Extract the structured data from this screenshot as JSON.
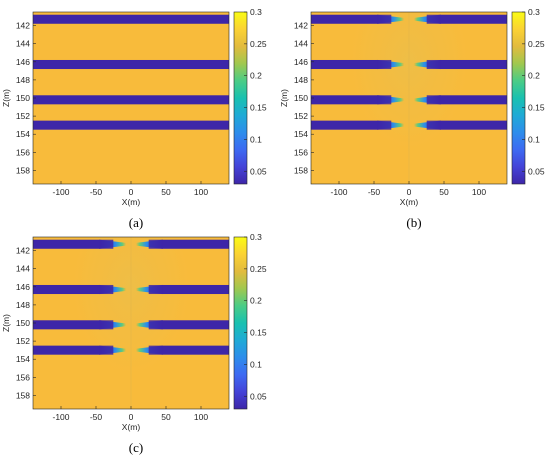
{
  "colors": {
    "background_field": "#F8BB3B",
    "layer": "#3D26A8",
    "colormap": [
      "#3D26A8",
      "#4443D8",
      "#3D6AF2",
      "#2D8DEB",
      "#1FAAD6",
      "#19C1B0",
      "#4BCC86",
      "#A1C84F",
      "#E2BB3E",
      "#FBD234",
      "#F9FB15"
    ]
  },
  "chart_data": [
    {
      "panel_label": "(a)",
      "type": "heatmap",
      "xlabel": "X(m)",
      "ylabel": "Z(m)",
      "xlim": [
        -140,
        140
      ],
      "ylim": [
        140.5,
        159.5
      ],
      "x_ticks": [
        -100,
        -50,
        0,
        50,
        100
      ],
      "y_ticks": [
        142,
        144,
        146,
        148,
        150,
        152,
        154,
        156,
        158
      ],
      "colorbar": {
        "range": [
          0.03,
          0.3
        ],
        "ticks": [
          0.05,
          0.1,
          0.15,
          0.2,
          0.25,
          0.3
        ]
      },
      "background_value": 0.27,
      "layers": [
        {
          "z_top": 140.8,
          "z_bottom": 141.8,
          "value": 0.03
        },
        {
          "z_top": 145.8,
          "z_bottom": 146.8,
          "value": 0.03
        },
        {
          "z_top": 149.7,
          "z_bottom": 150.7,
          "value": 0.03
        },
        {
          "z_top": 152.5,
          "z_bottom": 153.5,
          "value": 0.03
        }
      ],
      "wellbore_effect": false
    },
    {
      "panel_label": "(b)",
      "type": "heatmap",
      "xlabel": "X(m)",
      "ylabel": "Z(m)",
      "xlim": [
        -140,
        140
      ],
      "ylim": [
        140.5,
        159.5
      ],
      "x_ticks": [
        -100,
        -50,
        0,
        50,
        100
      ],
      "y_ticks": [
        142,
        144,
        146,
        148,
        150,
        152,
        154,
        156,
        158
      ],
      "colorbar": {
        "range": [
          0.03,
          0.3
        ],
        "ticks": [
          0.05,
          0.1,
          0.15,
          0.2,
          0.25,
          0.3
        ]
      },
      "background_value": 0.27,
      "layers": [
        {
          "z_top": 140.8,
          "z_bottom": 141.8,
          "value": 0.03
        },
        {
          "z_top": 145.8,
          "z_bottom": 146.8,
          "value": 0.03
        },
        {
          "z_top": 149.7,
          "z_bottom": 150.7,
          "value": 0.03
        },
        {
          "z_top": 152.5,
          "z_bottom": 153.5,
          "value": 0.03
        }
      ],
      "wellbore_effect": true
    },
    {
      "panel_label": "(c)",
      "type": "heatmap",
      "xlabel": "X(m)",
      "ylabel": "Z(m)",
      "xlim": [
        -140,
        140
      ],
      "ylim": [
        140.5,
        159.5
      ],
      "x_ticks": [
        -100,
        -50,
        0,
        50,
        100
      ],
      "y_ticks": [
        142,
        144,
        146,
        148,
        150,
        152,
        154,
        156,
        158
      ],
      "colorbar": {
        "range": [
          0.03,
          0.3
        ],
        "ticks": [
          0.05,
          0.1,
          0.15,
          0.2,
          0.25,
          0.3
        ]
      },
      "background_value": 0.27,
      "layers": [
        {
          "z_top": 140.8,
          "z_bottom": 141.8,
          "value": 0.03
        },
        {
          "z_top": 145.8,
          "z_bottom": 146.8,
          "value": 0.03
        },
        {
          "z_top": 149.7,
          "z_bottom": 150.7,
          "value": 0.03
        },
        {
          "z_top": 152.5,
          "z_bottom": 153.5,
          "value": 0.03
        }
      ],
      "wellbore_effect": true
    }
  ]
}
